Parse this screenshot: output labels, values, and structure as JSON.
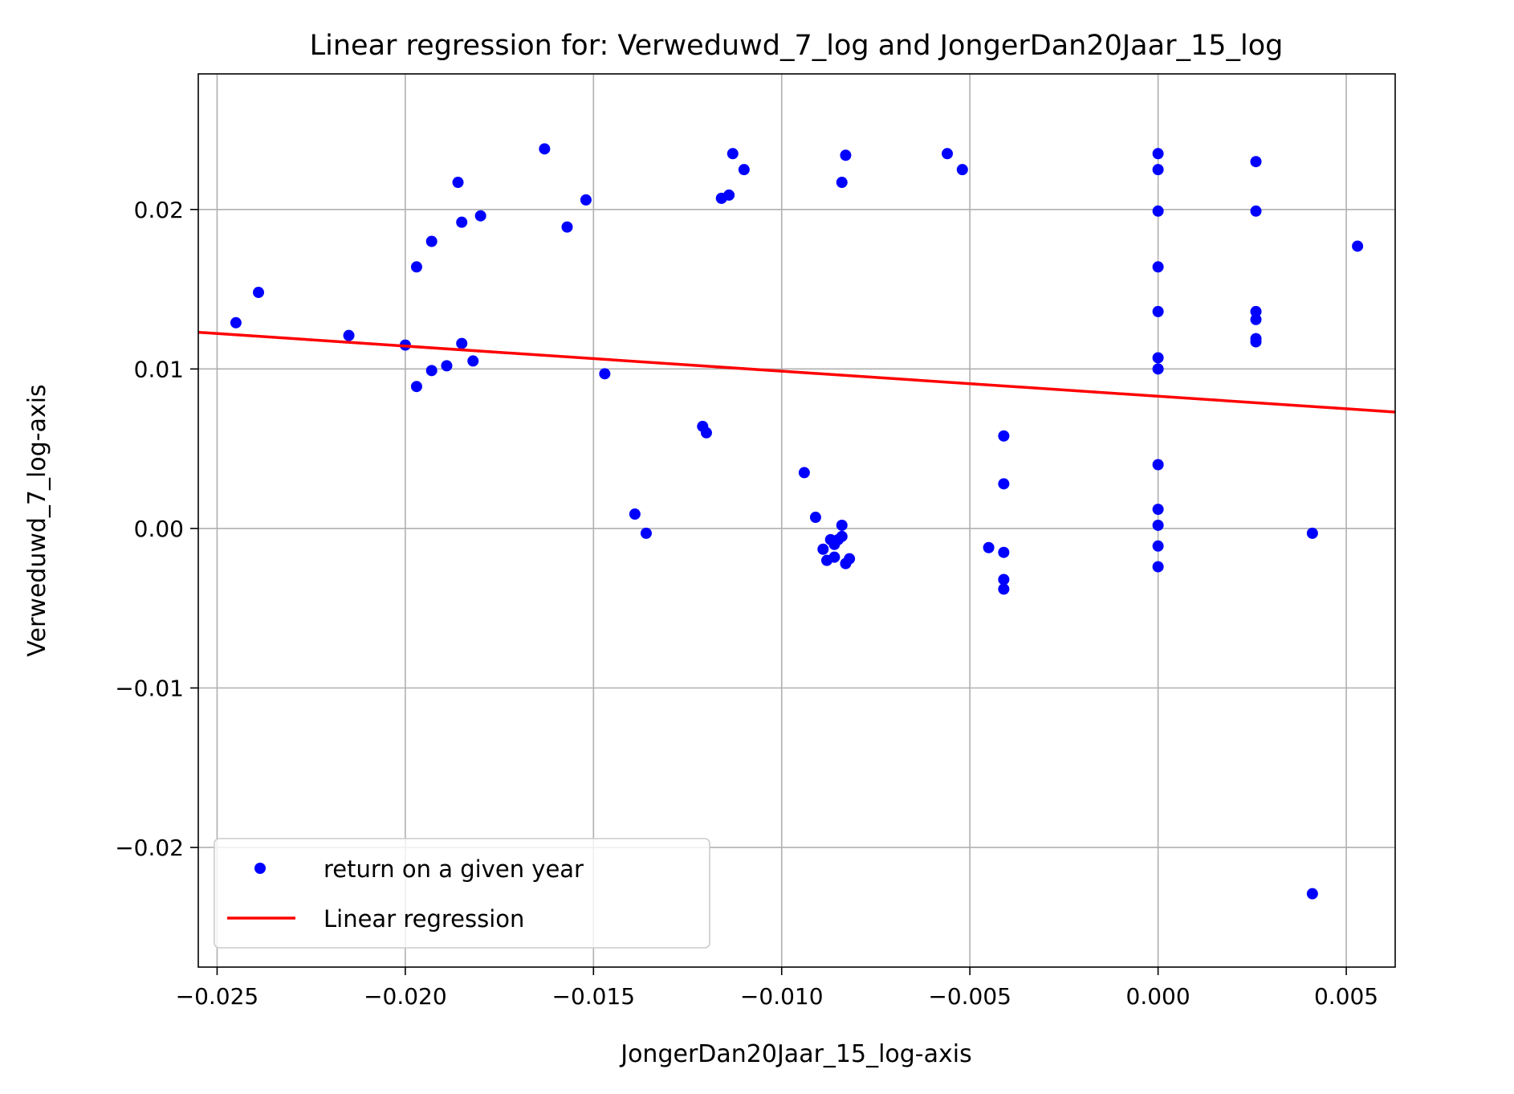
{
  "chart_data": {
    "type": "scatter",
    "title": "Linear regression for: Verweduwd_7_log and JongerDan20Jaar_15_log",
    "xlabel": "JongerDan20Jaar_15_log-axis",
    "ylabel": "Verweduwd_7_log-axis",
    "xlim": [
      -0.0255,
      0.0063
    ],
    "ylim": [
      -0.0275,
      0.0285
    ],
    "x_ticks": [
      -0.025,
      -0.02,
      -0.015,
      -0.01,
      -0.005,
      0.0,
      0.005
    ],
    "x_tick_labels": [
      "−0.025",
      "−0.020",
      "−0.015",
      "−0.010",
      "−0.005",
      "0.000",
      "0.005"
    ],
    "y_ticks": [
      -0.02,
      -0.01,
      0.0,
      0.01,
      0.02
    ],
    "y_tick_labels": [
      "−0.02",
      "−0.01",
      "0.00",
      "0.01",
      "0.02"
    ],
    "grid": true,
    "legend_position": "lower-left",
    "series": [
      {
        "name": "return on a given year",
        "kind": "scatter",
        "color": "#0000ff",
        "points": [
          [
            -0.0245,
            0.0129
          ],
          [
            -0.0239,
            0.0148
          ],
          [
            -0.0215,
            0.0121
          ],
          [
            -0.02,
            0.0115
          ],
          [
            -0.0197,
            0.0164
          ],
          [
            -0.0197,
            0.0089
          ],
          [
            -0.0193,
            0.018
          ],
          [
            -0.0193,
            0.0099
          ],
          [
            -0.0189,
            0.0102
          ],
          [
            -0.0186,
            0.0217
          ],
          [
            -0.0185,
            0.0192
          ],
          [
            -0.0185,
            0.0116
          ],
          [
            -0.0182,
            0.0105
          ],
          [
            -0.018,
            0.0196
          ],
          [
            -0.0163,
            0.0238
          ],
          [
            -0.0157,
            0.0189
          ],
          [
            -0.0152,
            0.0206
          ],
          [
            -0.0147,
            0.0097
          ],
          [
            -0.0139,
            0.0009
          ],
          [
            -0.0136,
            -0.0003
          ],
          [
            -0.0121,
            0.0064
          ],
          [
            -0.012,
            0.006
          ],
          [
            -0.0116,
            0.0207
          ],
          [
            -0.0114,
            0.0209
          ],
          [
            -0.0113,
            0.0235
          ],
          [
            -0.011,
            0.0225
          ],
          [
            -0.0094,
            0.0035
          ],
          [
            -0.0091,
            0.0007
          ],
          [
            -0.0089,
            -0.0013
          ],
          [
            -0.0088,
            -0.002
          ],
          [
            -0.0087,
            -0.0007
          ],
          [
            -0.0086,
            -0.001
          ],
          [
            -0.0086,
            -0.0018
          ],
          [
            -0.0085,
            -0.0007
          ],
          [
            -0.0084,
            -0.0005
          ],
          [
            -0.0084,
            0.0217
          ],
          [
            -0.0084,
            0.0002
          ],
          [
            -0.0083,
            0.0234
          ],
          [
            -0.0083,
            -0.0022
          ],
          [
            -0.0082,
            -0.0019
          ],
          [
            -0.0056,
            0.0235
          ],
          [
            -0.0052,
            0.0225
          ],
          [
            -0.0045,
            -0.0012
          ],
          [
            -0.0041,
            -0.0032
          ],
          [
            -0.0041,
            -0.0038
          ],
          [
            -0.0041,
            0.0028
          ],
          [
            -0.0041,
            0.0058
          ],
          [
            -0.0041,
            -0.0015
          ],
          [
            0.0,
            0.0235
          ],
          [
            0.0,
            0.0225
          ],
          [
            0.0,
            0.0199
          ],
          [
            0.0,
            0.0164
          ],
          [
            0.0,
            0.0136
          ],
          [
            0.0,
            0.0107
          ],
          [
            0.0,
            0.01
          ],
          [
            0.0,
            0.004
          ],
          [
            0.0,
            0.0012
          ],
          [
            0.0,
            0.0002
          ],
          [
            0.0,
            -0.0011
          ],
          [
            0.0,
            -0.0024
          ],
          [
            0.0026,
            0.023
          ],
          [
            0.0026,
            0.0199
          ],
          [
            0.0026,
            0.0136
          ],
          [
            0.0026,
            0.0131
          ],
          [
            0.0026,
            0.0119
          ],
          [
            0.0026,
            0.0117
          ],
          [
            0.0041,
            -0.0003
          ],
          [
            0.0041,
            -0.0229
          ],
          [
            0.0053,
            0.0177
          ]
        ]
      },
      {
        "name": "Linear regression",
        "kind": "line",
        "color": "#ff0000",
        "points": [
          [
            -0.0255,
            0.0123
          ],
          [
            0.0063,
            0.0073
          ]
        ]
      }
    ]
  }
}
